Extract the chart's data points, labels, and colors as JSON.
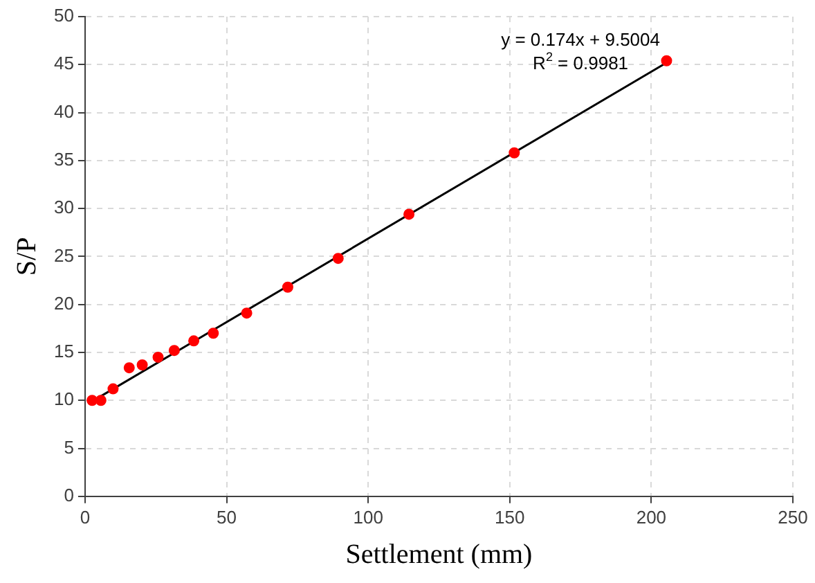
{
  "chart_data": {
    "type": "scatter",
    "xlabel": "Settlement (mm)",
    "ylabel": "S/P",
    "x": [
      2.5,
      5.6,
      9.9,
      15.6,
      20.2,
      25.8,
      31.5,
      38.4,
      45.3,
      57.1,
      71.6,
      89.4,
      114.4,
      151.6,
      205.4
    ],
    "series": [
      {
        "color": "#ff0000",
        "marker": "circle",
        "values": [
          10.0,
          10.0,
          11.2,
          13.4,
          13.7,
          14.5,
          15.2,
          16.2,
          17.0,
          19.1,
          21.8,
          24.8,
          29.4,
          35.8,
          45.4
        ]
      },
      {
        "type": "line",
        "color": "#000000",
        "marker": "none",
        "x": [
          2.5,
          205.4
        ],
        "values": [
          9.9,
          45.2
        ]
      }
    ],
    "annotations": [
      "y = 0.174x + 9.5004",
      "R$^{2}$ = 0.9981"
    ],
    "xlim": [
      0,
      250
    ],
    "xticks": [
      0,
      50,
      100,
      150,
      200,
      250
    ],
    "ylim": [
      0,
      50
    ],
    "yticks": [
      0,
      5,
      10,
      15,
      20,
      25,
      30,
      35,
      40,
      45,
      50
    ],
    "grid": true,
    "legend": false
  }
}
